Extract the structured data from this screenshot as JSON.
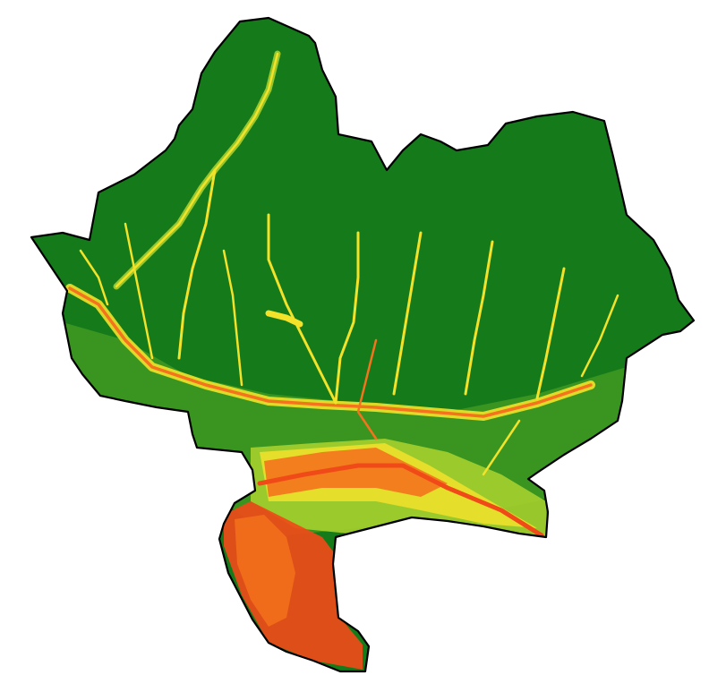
{
  "map": {
    "kind": "terrain-raster-choropleth",
    "background": "#ffffff",
    "boundary_color": "#000000",
    "palette": {
      "high": "#147a1a",
      "upper_mid": "#3f9a22",
      "mid": "#a6cf2e",
      "lower_mid": "#f2e22a",
      "low": "#f4731c",
      "lowest": "#f04a18"
    },
    "has_legend": false,
    "has_title": false
  }
}
